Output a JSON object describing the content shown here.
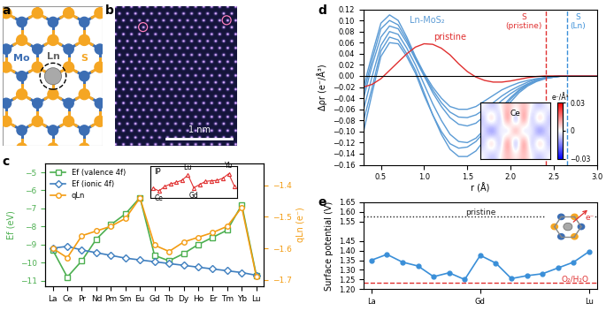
{
  "chart_data": [
    {
      "panel": "c",
      "type": "line",
      "categories": [
        "La",
        "Ce",
        "Pr",
        "Nd",
        "Pm",
        "Sm",
        "Eu",
        "Gd",
        "Tb",
        "Dy",
        "Ho",
        "Er",
        "Tm",
        "Yb",
        "Lu"
      ],
      "ylabel": "Ef (eV)",
      "y2label": "qLn (e⁻)",
      "ylim": [
        -11.3,
        -4.5
      ],
      "yticks": [
        {
          "value": -11,
          "label": "−11"
        },
        {
          "value": -10,
          "label": "−10"
        },
        {
          "value": -9,
          "label": "−9"
        },
        {
          "value": -8,
          "label": "−8"
        },
        {
          "value": -7,
          "label": "−7"
        },
        {
          "value": -6,
          "label": "−6"
        },
        {
          "value": -5,
          "label": "−5"
        }
      ],
      "y2lim": [
        -1.72,
        -1.33
      ],
      "y2ticks": [
        {
          "value": -1.7,
          "label": "−1.7"
        },
        {
          "value": -1.6,
          "label": "−1.6"
        },
        {
          "value": -1.5,
          "label": "−1.5"
        },
        {
          "value": -1.4,
          "label": "−1.4"
        }
      ],
      "legend": "upper left",
      "series": [
        {
          "name": "Ef (valence 4f)",
          "color": "#4caf50",
          "marker": "square",
          "values": [
            -9.3,
            -10.8,
            -9.9,
            -8.7,
            -7.9,
            -7.3,
            -6.4,
            -9.6,
            -9.9,
            -9.5,
            -9.0,
            -8.6,
            -8.2,
            -6.8,
            -10.7
          ]
        },
        {
          "name": "Ef (ionic 4f)",
          "color": "#3f7fbf",
          "marker": "diamond",
          "values": [
            -9.2,
            -9.1,
            -9.3,
            -9.45,
            -9.6,
            -9.75,
            -9.85,
            -9.95,
            -10.05,
            -10.15,
            -10.25,
            -10.35,
            -10.45,
            -10.55,
            -10.7
          ]
        },
        {
          "name": "qLn",
          "color": "#f39c12",
          "marker": "circle",
          "axis": "y2",
          "values": [
            -1.6,
            -1.63,
            -1.56,
            -1.545,
            -1.53,
            -1.505,
            -1.44,
            -1.59,
            -1.61,
            -1.58,
            -1.565,
            -1.55,
            -1.53,
            -1.47,
            -1.69
          ]
        }
      ],
      "inset": {
        "type": "line",
        "ylabel": "IP",
        "color": "#e03030",
        "marker": "triangle",
        "values": [
          20.5,
          19.6,
          21.0,
          21.8,
          22.3,
          23.0,
          24.6,
          20.6,
          21.6,
          22.6,
          22.8,
          22.9,
          23.6,
          25.0,
          21.0
        ],
        "ylim": [
          17.5,
          27.5
        ],
        "tick_labels": false,
        "point_labels": [
          "Ce",
          "Eu",
          "Gd",
          "Yb"
        ]
      }
    },
    {
      "panel": "d",
      "type": "line",
      "xlabel": "r (Å)",
      "ylabel": "Δρr (e⁻/Å³)",
      "x": [
        0.3,
        0.4,
        0.5,
        0.6,
        0.7,
        0.8,
        0.9,
        1.0,
        1.1,
        1.2,
        1.3,
        1.4,
        1.5,
        1.6,
        1.7,
        1.8,
        1.9,
        2.0,
        2.1,
        2.2,
        2.3,
        2.4,
        2.5,
        2.6,
        2.7,
        2.8,
        2.9,
        3.0
      ],
      "xlim": [
        0.3,
        3.0
      ],
      "xticks": [
        0.5,
        1.0,
        1.5,
        2.0,
        2.5,
        3.0
      ],
      "ylim": [
        -0.16,
        0.12
      ],
      "yticks": [
        {
          "value": -0.16,
          "label": "−0.16"
        },
        {
          "value": -0.14,
          "label": "−0.14"
        },
        {
          "value": -0.12,
          "label": "−0.12"
        },
        {
          "value": -0.1,
          "label": "−0.10"
        },
        {
          "value": -0.08,
          "label": "−0.08"
        },
        {
          "value": -0.06,
          "label": "−0.06"
        },
        {
          "value": -0.04,
          "label": "−0.04"
        },
        {
          "value": -0.02,
          "label": "−0.02"
        },
        {
          "value": 0,
          "label": "0.00"
        },
        {
          "value": 0.02,
          "label": "0.02"
        },
        {
          "value": 0.04,
          "label": "0.04"
        },
        {
          "value": 0.06,
          "label": "0.06"
        },
        {
          "value": 0.08,
          "label": "0.08"
        },
        {
          "value": 0.1,
          "label": "0.10"
        },
        {
          "value": 0.12,
          "label": "0.12"
        }
      ],
      "series": [
        {
          "name": "Ln-MoS₂",
          "color": "#5b9bd5",
          "values": [
            -0.02,
            0.04,
            0.095,
            0.11,
            0.1,
            0.07,
            0.035,
            0.005,
            -0.02,
            -0.04,
            -0.055,
            -0.06,
            -0.06,
            -0.055,
            -0.045,
            -0.035,
            -0.025,
            -0.018,
            -0.012,
            -0.008,
            -0.005,
            -0.003,
            -0.001,
            0.0,
            0.0,
            0.0,
            0.0,
            0.0
          ]
        },
        {
          "name": "Ln-MoS₂",
          "color": "#5b9bd5",
          "values": [
            -0.04,
            0.02,
            0.07,
            0.09,
            0.085,
            0.06,
            0.03,
            0.0,
            -0.03,
            -0.055,
            -0.075,
            -0.087,
            -0.09,
            -0.085,
            -0.072,
            -0.058,
            -0.044,
            -0.032,
            -0.022,
            -0.014,
            -0.008,
            -0.004,
            -0.002,
            0.0,
            0.0,
            0.0,
            0.0,
            0.0
          ]
        },
        {
          "name": "Ln-MoS₂",
          "color": "#5b9bd5",
          "values": [
            -0.06,
            0.0,
            0.055,
            0.08,
            0.075,
            0.05,
            0.02,
            -0.015,
            -0.05,
            -0.08,
            -0.105,
            -0.118,
            -0.12,
            -0.112,
            -0.096,
            -0.076,
            -0.056,
            -0.039,
            -0.025,
            -0.015,
            -0.008,
            -0.004,
            -0.001,
            0.0,
            0.0,
            0.0,
            0.0,
            0.0
          ]
        },
        {
          "name": "Ln-MoS₂",
          "color": "#5b9bd5",
          "values": [
            -0.08,
            -0.02,
            0.045,
            0.07,
            0.065,
            0.04,
            0.01,
            -0.03,
            -0.07,
            -0.105,
            -0.132,
            -0.145,
            -0.145,
            -0.135,
            -0.115,
            -0.092,
            -0.068,
            -0.047,
            -0.03,
            -0.018,
            -0.01,
            -0.005,
            -0.002,
            0.0,
            0.0,
            0.0,
            0.0,
            0.0
          ]
        },
        {
          "name": "Ln-MoS₂",
          "color": "#5b9bd5",
          "values": [
            -0.03,
            0.03,
            0.085,
            0.1,
            0.092,
            0.065,
            0.032,
            0.002,
            -0.025,
            -0.048,
            -0.065,
            -0.074,
            -0.075,
            -0.07,
            -0.06,
            -0.048,
            -0.036,
            -0.026,
            -0.018,
            -0.011,
            -0.006,
            -0.003,
            -0.001,
            0.0,
            0.0,
            0.0,
            0.0,
            0.0
          ]
        },
        {
          "name": "Ln-MoS₂",
          "color": "#5b9bd5",
          "values": [
            -0.1,
            -0.03,
            0.035,
            0.06,
            0.058,
            0.035,
            0.005,
            -0.035,
            -0.07,
            -0.1,
            -0.122,
            -0.13,
            -0.128,
            -0.118,
            -0.1,
            -0.08,
            -0.06,
            -0.042,
            -0.027,
            -0.016,
            -0.009,
            -0.004,
            -0.002,
            0.0,
            0.0,
            0.0,
            0.0,
            0.0
          ]
        },
        {
          "name": "pristine",
          "color": "#e03030",
          "values": [
            -0.02,
            -0.015,
            -0.005,
            0.01,
            0.025,
            0.04,
            0.052,
            0.058,
            0.057,
            0.05,
            0.038,
            0.022,
            0.008,
            -0.002,
            -0.008,
            -0.011,
            -0.011,
            -0.009,
            -0.006,
            -0.003,
            -0.001,
            0.0,
            0.0,
            0.0,
            0.0,
            0.0,
            0.0,
            0.0
          ]
        }
      ],
      "hline": 0,
      "vlines": [
        {
          "x": 2.41,
          "label": "S\n(pristine)",
          "color": "#e03030",
          "line_style": "dashed"
        },
        {
          "x": 2.65,
          "label": "S\n(Ln)",
          "color": "#3a8fd8",
          "line_style": "dashed"
        }
      ],
      "inset": {
        "type": "heatmap",
        "label": "Ce",
        "cells": [
          [
            0.0,
            -0.01,
            0.0,
            0.01,
            0.0,
            0.01,
            0.0,
            -0.01,
            0.0
          ],
          [
            -0.01,
            0.02,
            -0.02,
            0.03,
            -0.03,
            0.03,
            -0.02,
            0.02,
            -0.01
          ],
          [
            0.0,
            -0.03,
            0.01,
            -0.02,
            0.03,
            -0.02,
            0.01,
            -0.03,
            0.0
          ],
          [
            -0.01,
            0.02,
            -0.02,
            0.03,
            -0.03,
            0.03,
            -0.02,
            0.02,
            -0.01
          ],
          [
            0.0,
            -0.01,
            0.0,
            0.01,
            0.0,
            0.01,
            0.0,
            -0.01,
            0.0
          ]
        ],
        "colorbar": {
          "title": "e⁻/Å³",
          "lim": [
            -0.03,
            0.03
          ],
          "ticks": [
            {
              "value": 0.03,
              "label": "0.03"
            },
            0,
            {
              "value": -0.03,
              "label": "−0.03"
            }
          ]
        }
      }
    },
    {
      "panel": "e",
      "type": "line",
      "categories": [
        "La",
        null,
        null,
        null,
        null,
        null,
        null,
        "Gd",
        null,
        null,
        null,
        null,
        null,
        null,
        "Lu"
      ],
      "ylabel": "Surface potential (V)",
      "ylim": [
        1.2,
        1.65
      ],
      "yticks": [
        {
          "value": 1.2,
          "label": "1.20"
        },
        {
          "value": 1.25,
          "label": "1.25"
        },
        {
          "value": 1.3,
          "label": "1.30"
        },
        {
          "value": 1.35,
          "label": "1.35"
        },
        {
          "value": 1.4,
          "label": "1.40"
        },
        {
          "value": 1.45,
          "label": "1.45"
        },
        {
          "value": 1.55,
          "label": "1.55"
        },
        {
          "value": 1.6,
          "label": "1.60"
        },
        {
          "value": 1.65,
          "label": "1.65"
        }
      ],
      "color": "#3a8fd8",
      "marker": "circle",
      "values": [
        1.35,
        1.38,
        1.34,
        1.32,
        1.265,
        1.285,
        1.25,
        1.375,
        1.335,
        1.255,
        1.27,
        1.28,
        1.31,
        1.34,
        1.395
      ],
      "reference_lines": [
        {
          "label": "pristine",
          "y": 1.575,
          "color": "#222222",
          "line_style": "dotted"
        },
        {
          "label": "O₂/H₂O",
          "y": 1.232,
          "color": "#e03030",
          "line_style": "dashed"
        }
      ],
      "inset": {
        "label": "e⁻"
      }
    }
  ],
  "structure": {
    "panel": "a",
    "atoms": [
      {
        "label": "Mo",
        "color": "#3c6eb4"
      },
      {
        "label": "S",
        "color": "#f5a623"
      },
      {
        "label": "Ln",
        "color": "#a9a9a9"
      }
    ]
  },
  "image": {
    "panel": "b",
    "scale_bar": "1 nm"
  }
}
